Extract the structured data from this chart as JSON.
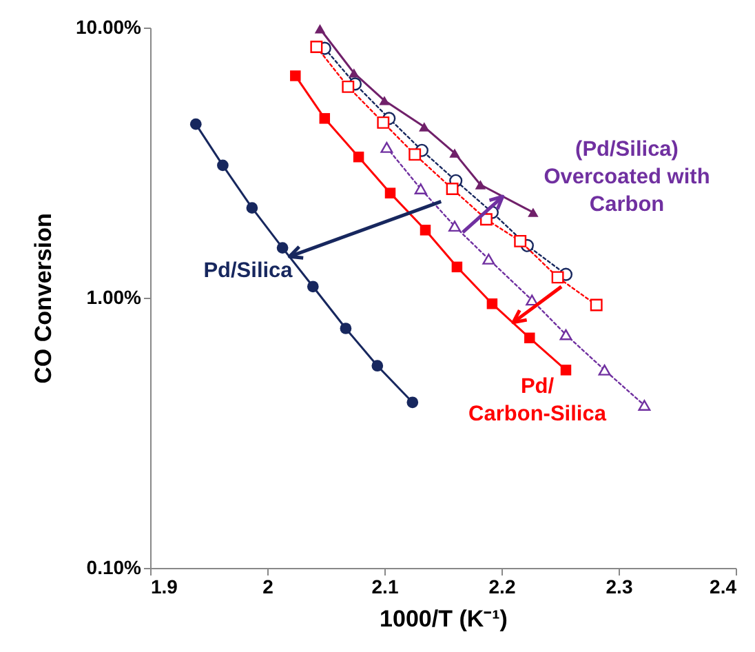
{
  "chart_data": {
    "type": "line",
    "xlabel": "1000/T (K⁻¹)",
    "ylabel": "CO Conversion",
    "log": "y",
    "xlim": [
      1.9,
      2.4
    ],
    "xticks": [
      1.9,
      2,
      2.1,
      2.2,
      2.3,
      2.4
    ],
    "ylim": [
      0.1,
      10
    ],
    "yticks": [
      {
        "value": 0.1,
        "label": "0.10%"
      },
      {
        "value": 1,
        "label": "1.00%"
      },
      {
        "value": 10,
        "label": "10.00%"
      }
    ],
    "grid": false,
    "series": [
      {
        "color": "#17275e",
        "marker": "circle",
        "line_style": "solid",
        "x": [
          1.939,
          1.962,
          1.987,
          2.013,
          2.039,
          2.067,
          2.094,
          2.124
        ],
        "values": [
          4.39,
          3.09,
          2.15,
          1.53,
          1.1,
          0.77,
          0.56,
          0.41
        ]
      },
      {
        "color": "#ff0000",
        "marker": "square",
        "line_style": "solid",
        "x": [
          2.024,
          2.049,
          2.078,
          2.105,
          2.135,
          2.162,
          2.192,
          2.224,
          2.255
        ],
        "values": [
          6.63,
          4.61,
          3.32,
          2.44,
          1.78,
          1.3,
          0.95,
          0.71,
          0.54
        ]
      },
      {
        "color": "#70206a",
        "marker": "triangle",
        "line_style": "solid",
        "x": [
          2.045,
          2.074,
          2.1,
          2.134,
          2.16,
          2.182,
          2.227
        ],
        "values": [
          9.9,
          6.79,
          5.37,
          4.29,
          3.43,
          2.62,
          2.07
        ]
      },
      {
        "color": "#17275e",
        "marker": "circle",
        "line_style": "dotted",
        "x": [
          2.049,
          2.075,
          2.104,
          2.132,
          2.161,
          2.192,
          2.222,
          2.255
        ],
        "values": [
          8.38,
          6.18,
          4.61,
          3.51,
          2.71,
          2.07,
          1.56,
          1.22
        ]
      },
      {
        "color": "#ff0000",
        "marker": "square",
        "line_style": "dotted",
        "x": [
          2.042,
          2.069,
          2.099,
          2.126,
          2.158,
          2.187,
          2.216,
          2.248,
          2.281
        ],
        "values": [
          8.48,
          6.04,
          4.45,
          3.39,
          2.53,
          1.95,
          1.62,
          1.19,
          0.94
        ]
      },
      {
        "color": "#7030a0",
        "marker": "triangle",
        "line_style": "dotted",
        "x": [
          2.102,
          2.131,
          2.16,
          2.189,
          2.226,
          2.255,
          2.288,
          2.322
        ],
        "values": [
          3.6,
          2.53,
          1.84,
          1.39,
          0.98,
          0.73,
          0.54,
          0.4
        ]
      }
    ],
    "annotations": [
      {
        "text": "Pd/Silica",
        "x": 2.019,
        "y": 1.42
      },
      {
        "text": "Pd/\nCarbon-Silica",
        "x": 2.21,
        "y": 0.81
      },
      {
        "text": "(Pd/Silica)\nOvercoated with\nCarbon",
        "x": 2.201,
        "y": 2.37
      }
    ]
  }
}
